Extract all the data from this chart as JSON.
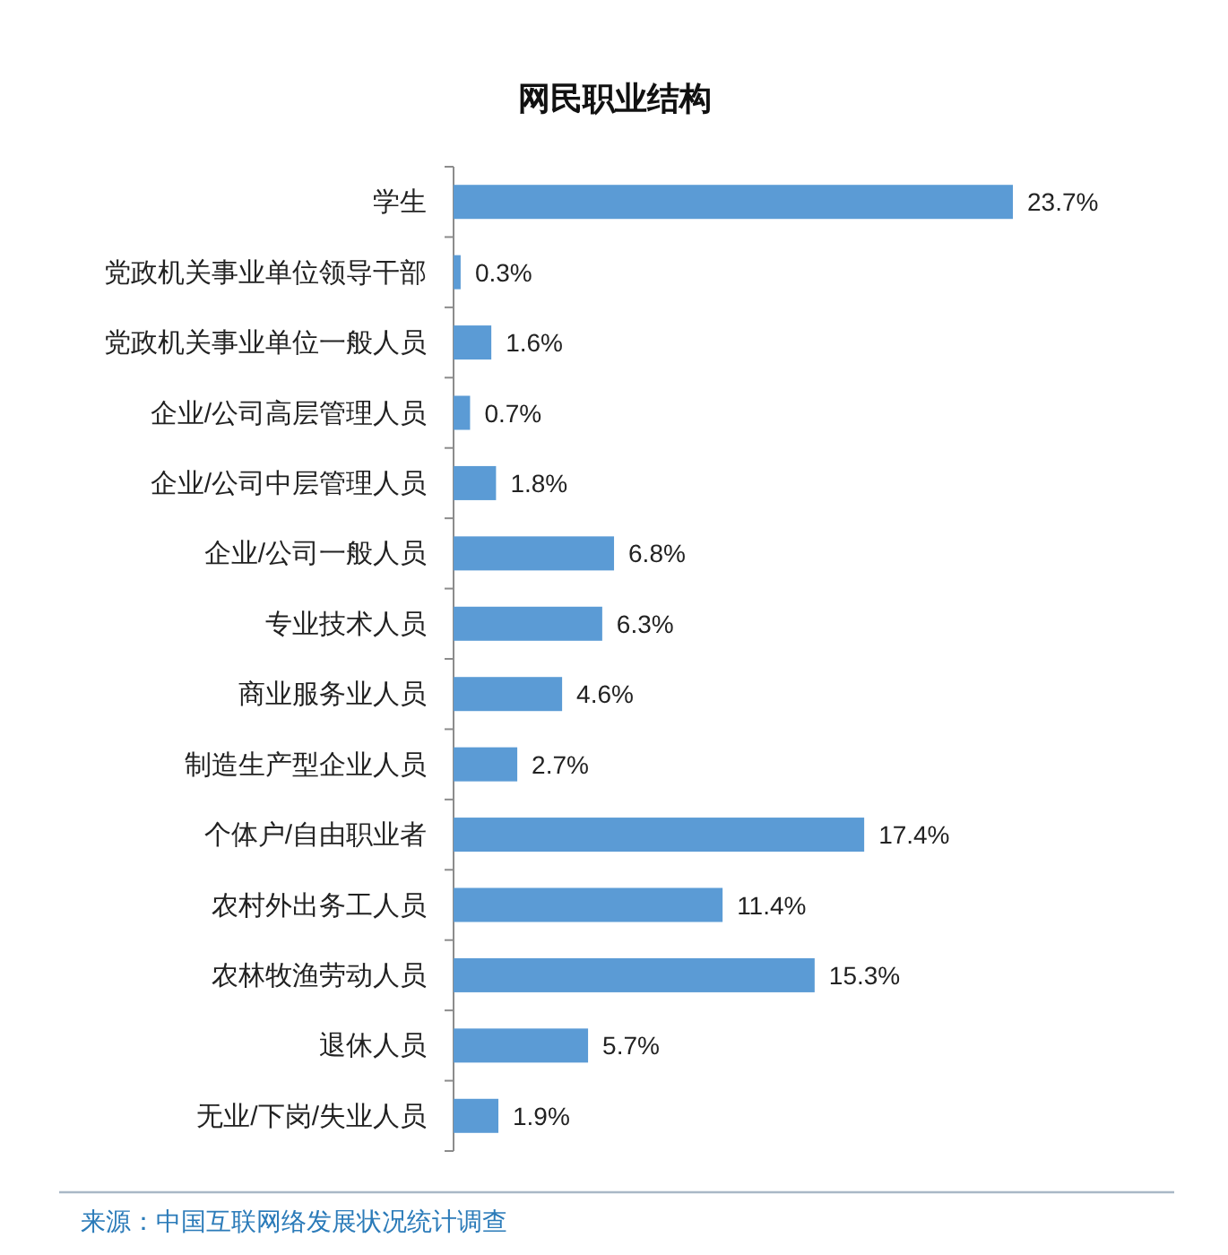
{
  "chart_data": {
    "type": "bar",
    "orientation": "horizontal",
    "title": "网民职业结构",
    "categories": [
      "学生",
      "党政机关事业单位领导干部",
      "党政机关事业单位一般人员",
      "企业/公司高层管理人员",
      "企业/公司中层管理人员",
      "企业/公司一般人员",
      "专业技术人员",
      "商业服务业人员",
      "制造生产型企业人员",
      "个体户/自由职业者",
      "农村外出务工人员",
      "农林牧渔劳动人员",
      "退休人员",
      "无业/下岗/失业人员"
    ],
    "values": [
      23.7,
      0.3,
      1.6,
      0.7,
      1.8,
      6.8,
      6.3,
      4.6,
      2.7,
      17.4,
      11.4,
      15.3,
      5.7,
      1.9
    ],
    "value_labels": [
      "23.7%",
      "0.3%",
      "1.6%",
      "0.7%",
      "1.8%",
      "6.8%",
      "6.3%",
      "4.6%",
      "2.7%",
      "17.4%",
      "11.4%",
      "15.3%",
      "5.7%",
      "1.9%"
    ],
    "color": "#5b9bd5",
    "annotations": [
      "来源：中国互联网络发展状况统计调查"
    ]
  }
}
